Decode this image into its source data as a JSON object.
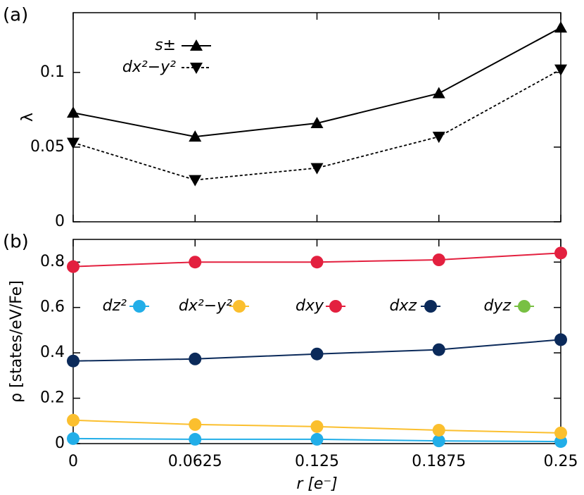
{
  "chart_data": [
    {
      "type": "line",
      "panel_label": "(a)",
      "ylabel": "λ",
      "x": [
        0,
        0.0625,
        0.125,
        0.1875,
        0.25
      ],
      "xlim": [
        0,
        0.25
      ],
      "ylim": [
        0,
        0.14
      ],
      "yticks": [
        0,
        0.05,
        0.1
      ],
      "series": [
        {
          "name": "s±",
          "color": "#000000",
          "marker": "up",
          "dash": false,
          "values": [
            0.073,
            0.057,
            0.066,
            0.086,
            0.13
          ]
        },
        {
          "name": "dx²−y²",
          "color": "#000000",
          "marker": "down",
          "dash": true,
          "values": [
            0.053,
            0.028,
            0.036,
            0.057,
            0.102
          ]
        }
      ]
    },
    {
      "type": "line",
      "panel_label": "(b)",
      "ylabel": "ρ [states/eV/Fe]",
      "xlabel": "r [e⁻]",
      "x": [
        0,
        0.0625,
        0.125,
        0.1875,
        0.25
      ],
      "xlim": [
        0,
        0.25
      ],
      "xticks": [
        0,
        0.0625,
        0.125,
        0.1875,
        0.25
      ],
      "ylim": [
        0,
        0.9
      ],
      "yticks": [
        0,
        0.2,
        0.4,
        0.6,
        0.8
      ],
      "series": [
        {
          "name": "dz²",
          "color": "#22aee8",
          "marker": "circle",
          "values": [
            0.022,
            0.019,
            0.019,
            0.012,
            0.009
          ]
        },
        {
          "name": "dx²−y²",
          "color": "#fbbf2e",
          "marker": "circle",
          "values": [
            0.103,
            0.084,
            0.075,
            0.059,
            0.047
          ]
        },
        {
          "name": "dxy",
          "color": "#e3203f",
          "marker": "circle",
          "values": [
            0.78,
            0.8,
            0.8,
            0.81,
            0.84
          ]
        },
        {
          "name": "dxz",
          "color": "#0b2a5a",
          "marker": "circle",
          "values": [
            0.364,
            0.373,
            0.395,
            0.414,
            0.458
          ]
        },
        {
          "name": "dyz",
          "color": "#78c043",
          "marker": "circle",
          "values": [
            null,
            null,
            null,
            null,
            null
          ]
        }
      ]
    }
  ]
}
